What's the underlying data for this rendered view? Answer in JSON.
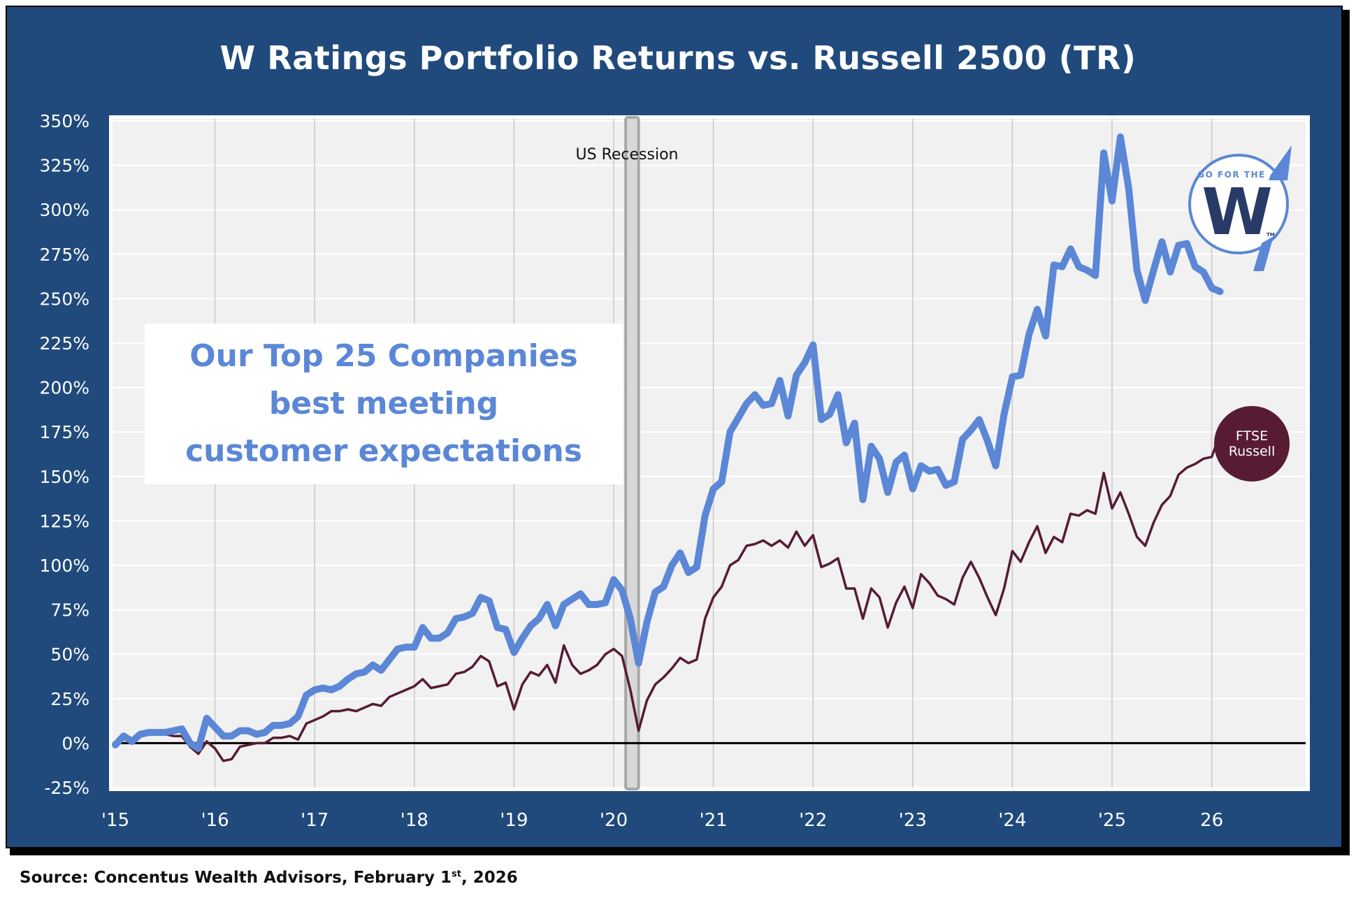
{
  "title": "W Ratings Portfolio Returns vs. Russell 2500 (TR)",
  "source": {
    "prefix": "Source: Concentus Wealth Advisors, February 1",
    "superscript": "st",
    "suffix": ", 2026"
  },
  "callout": {
    "lines": [
      "Our Top 25 Companies",
      "best meeting",
      "customer expectations"
    ],
    "color": "#5b87d6"
  },
  "logo": {
    "text_top": "GO FOR THE",
    "letter": "W",
    "trademark": "TM"
  },
  "ftse_badge": {
    "line1": "FTSE",
    "line2": "Russell",
    "color": "#571b34"
  },
  "annotation": {
    "recession_label": "US Recession",
    "recession_start": 2020.12,
    "recession_end": 2020.25
  },
  "colors": {
    "frame": "#204a7c",
    "plot_bg": "#f1f1f1",
    "w_ratings_line": "#5b87d6",
    "russell_line": "#571b34",
    "zero_line": "#000000",
    "recession_band": "#b4b4b4"
  },
  "chart_data": {
    "type": "line",
    "title": "W Ratings Portfolio Returns vs. Russell 2500 (TR)",
    "xlabel": "",
    "ylabel": "",
    "x_start": 2015.0,
    "x_step_months": 1,
    "xlim": [
      2015.0,
      2027.0
    ],
    "ylim": [
      -25,
      350
    ],
    "y_unit": "%",
    "grid": true,
    "y_ticks": [
      "350%",
      "325%",
      "300%",
      "275%",
      "250%",
      "225%",
      "200%",
      "175%",
      "150%",
      "125%",
      "100%",
      "75%",
      "50%",
      "25%",
      "0%",
      "-25%"
    ],
    "y_tick_values": [
      350,
      325,
      300,
      275,
      250,
      225,
      200,
      175,
      150,
      125,
      100,
      75,
      50,
      25,
      0,
      -25
    ],
    "x_ticks": [
      "'15",
      "'16",
      "'17",
      "'18",
      "'19",
      "'20",
      "'21",
      "'22",
      "'23",
      "'24",
      "'25",
      "26"
    ],
    "x_tick_values": [
      2015,
      2016,
      2017,
      2018,
      2019,
      2020,
      2021,
      2022,
      2023,
      2024,
      2025,
      2026
    ],
    "series": [
      {
        "name": "W Ratings Portfolio (Top 25 Companies)",
        "color": "#5b87d6",
        "values": [
          -1,
          4,
          1,
          5,
          6,
          6,
          6,
          7,
          8,
          0,
          -3,
          14,
          9,
          4,
          4,
          7,
          7,
          5,
          6,
          10,
          10,
          11,
          15,
          27,
          30,
          31,
          30,
          32,
          36,
          39,
          40,
          44,
          41,
          47,
          53,
          54,
          54,
          65,
          59,
          59,
          62,
          70,
          71,
          73,
          82,
          80,
          65,
          64,
          51,
          59,
          66,
          70,
          78,
          66,
          78,
          81,
          84,
          78,
          78,
          79,
          92,
          86,
          70,
          45,
          68,
          85,
          88,
          100,
          107,
          96,
          99,
          128,
          143,
          147,
          175,
          183,
          191,
          196,
          190,
          191,
          204,
          184,
          207,
          214,
          224,
          182,
          185,
          196,
          169,
          180,
          137,
          167,
          160,
          141,
          158,
          162,
          143,
          156,
          153,
          154,
          145,
          147,
          171,
          176,
          182,
          170,
          156,
          185,
          206,
          207,
          230,
          244,
          229,
          269,
          268,
          278,
          268,
          266,
          263,
          332,
          305,
          341,
          312,
          266,
          249,
          266,
          282,
          265,
          280,
          281,
          268,
          265,
          256,
          254
        ]
      },
      {
        "name": "Russell 2500 (TR)",
        "color": "#571b34",
        "values": [
          -1,
          3,
          2,
          6,
          5,
          5,
          5,
          4,
          4,
          -2,
          -6,
          1,
          -3,
          -10,
          -9,
          -2,
          -1,
          0,
          0,
          3,
          3,
          4,
          2,
          11,
          13,
          15,
          18,
          18,
          19,
          18,
          20,
          22,
          21,
          26,
          28,
          30,
          32,
          36,
          31,
          32,
          33,
          39,
          40,
          43,
          49,
          46,
          32,
          34,
          19,
          33,
          40,
          38,
          44,
          34,
          55,
          44,
          39,
          41,
          44,
          50,
          53,
          49,
          30,
          7,
          24,
          33,
          37,
          42,
          48,
          45,
          47,
          70,
          82,
          88,
          100,
          103,
          111,
          112,
          114,
          111,
          114,
          110,
          119,
          111,
          117,
          99,
          101,
          104,
          87,
          87,
          70,
          87,
          82,
          65,
          79,
          88,
          76,
          95,
          90,
          83,
          81,
          78,
          93,
          102,
          93,
          82,
          72,
          87,
          108,
          102,
          113,
          122,
          107,
          116,
          113,
          129,
          128,
          131,
          129,
          152,
          132,
          141,
          129,
          116,
          111,
          124,
          134,
          139,
          151,
          155,
          157,
          160,
          161,
          174
        ]
      }
    ]
  }
}
